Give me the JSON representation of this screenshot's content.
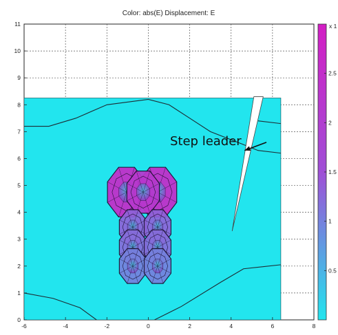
{
  "chart_data": {
    "type": "heatmap",
    "title": "Color: abs(E)  Displacement: E",
    "xlabel": "",
    "ylabel": "",
    "xlim": [
      -6,
      8
    ],
    "ylim": [
      0,
      11
    ],
    "x_ticks": [
      "-6",
      "-4",
      "-2",
      "0",
      "2",
      "4",
      "6",
      "8"
    ],
    "y_ticks": [
      "0",
      "1",
      "2",
      "3",
      "4",
      "5",
      "6",
      "7",
      "8",
      "9",
      "10",
      "11"
    ],
    "grid": true,
    "domain": {
      "x": [
        -6,
        6.4
      ],
      "y": [
        0,
        8.25
      ]
    },
    "colorbar": {
      "range": [
        0,
        3
      ],
      "ticks": [
        "0.5",
        "1",
        "1.5",
        "2",
        "2.5"
      ],
      "exponent_label": "x 1",
      "colors": [
        "#22e5ee",
        "#9f4fd6",
        "#d31ec4"
      ]
    },
    "contours": [
      {
        "name": "upper",
        "points": [
          [
            -6,
            7.2
          ],
          [
            -4.8,
            7.2
          ],
          [
            -3.5,
            7.5
          ],
          [
            -2,
            8.0
          ],
          [
            0,
            8.2
          ],
          [
            1,
            8.0
          ],
          [
            2,
            7.5
          ],
          [
            3,
            7.0
          ],
          [
            4.5,
            6.55
          ],
          [
            5.3,
            6.3
          ],
          [
            6.4,
            6.2
          ]
        ]
      },
      {
        "name": "right-upper",
        "points": [
          [
            5.3,
            7.4
          ],
          [
            6.4,
            7.3
          ]
        ]
      },
      {
        "name": "lower-left",
        "points": [
          [
            -6,
            1.0
          ],
          [
            -4.6,
            0.8
          ],
          [
            -3.3,
            0.45
          ],
          [
            -2.5,
            0
          ]
        ]
      },
      {
        "name": "lower-right",
        "points": [
          [
            0.3,
            0
          ],
          [
            1.6,
            0.5
          ],
          [
            3.5,
            1.4
          ],
          [
            4.6,
            1.9
          ],
          [
            6.4,
            2.05
          ]
        ]
      }
    ],
    "electrodes": [
      {
        "x": -1.05,
        "y": 4.75,
        "r": 1.0,
        "level": 2.6
      },
      {
        "x": 0.45,
        "y": 4.75,
        "r": 1.0,
        "level": 2.6
      },
      {
        "x": -0.25,
        "y": 4.75,
        "r": 0.85,
        "level": 2.2
      },
      {
        "x": -0.75,
        "y": 3.45,
        "r": 0.7,
        "level": 1.3
      },
      {
        "x": 0.45,
        "y": 3.45,
        "r": 0.7,
        "level": 1.3
      },
      {
        "x": -0.75,
        "y": 2.7,
        "r": 0.7,
        "level": 1.2
      },
      {
        "x": 0.45,
        "y": 2.7,
        "r": 0.7,
        "level": 1.2
      },
      {
        "x": -0.75,
        "y": 2.0,
        "r": 0.7,
        "level": 1.0
      },
      {
        "x": 0.45,
        "y": 2.0,
        "r": 0.7,
        "level": 1.0
      }
    ],
    "leader_gap": [
      [
        5.1,
        8.3
      ],
      [
        5.55,
        8.3
      ],
      [
        4.05,
        3.3
      ]
    ],
    "annotations": [
      {
        "text": "Step leader",
        "x": 1.05,
        "y": 6.5,
        "arrow_to": [
          4.65,
          6.3
        ]
      }
    ]
  }
}
